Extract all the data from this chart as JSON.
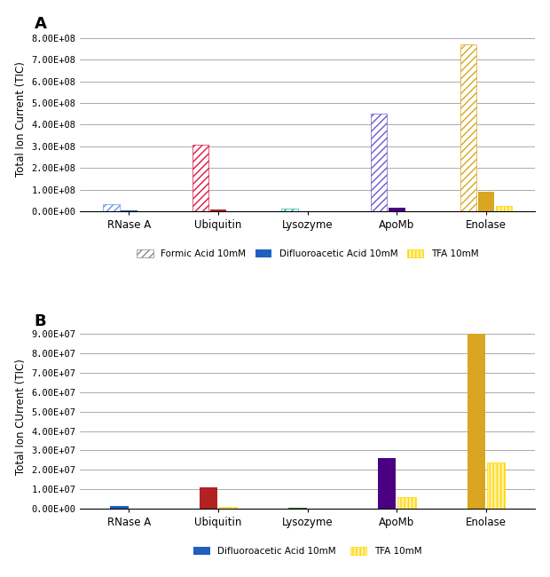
{
  "panel_A": {
    "title": "A",
    "ylabel": "Total Ion Current (TIC)",
    "categories": [
      "RNase A",
      "Ubiquitin",
      "Lysozyme",
      "ApoMb",
      "Enolase"
    ],
    "FA": [
      35000000.0,
      310000000.0,
      15000000.0,
      450000000.0,
      770000000.0
    ],
    "DFA": [
      4000000.0,
      8000000.0,
      3000000.0,
      20000000.0,
      90000000.0
    ],
    "TFA": [
      500000.0,
      1500000.0,
      500000.0,
      3000000.0,
      25000000.0
    ],
    "ylim": [
      0,
      850000000.0
    ],
    "yticks": [
      0,
      100000000.0,
      200000000.0,
      300000000.0,
      400000000.0,
      500000000.0,
      600000000.0,
      700000000.0,
      800000000.0
    ],
    "ytick_labels": [
      "0.00E+00",
      "1.00E+08",
      "2.00E+08",
      "3.00E+08",
      "4.00E+08",
      "5.00E+08",
      "6.00E+08",
      "7.00E+08",
      "8.00E+08"
    ]
  },
  "panel_B": {
    "title": "B",
    "ylabel": "Total Ion CUrrent (TIC)",
    "categories": [
      "RNase A",
      "Ubiquitin",
      "Lysozyme",
      "ApoMb",
      "Enolase"
    ],
    "DFA": [
      1500000.0,
      11000000.0,
      700000.0,
      26000000.0,
      90000000.0
    ],
    "TFA": [
      200000.0,
      1000000.0,
      200000.0,
      6000000.0,
      24000000.0
    ],
    "ylim": [
      0,
      95000000.0
    ],
    "yticks": [
      0,
      10000000.0,
      20000000.0,
      30000000.0,
      40000000.0,
      50000000.0,
      60000000.0,
      70000000.0,
      80000000.0,
      90000000.0
    ],
    "ytick_labels": [
      "0.00E+00",
      "1.00E+07",
      "2.00E+07",
      "3.00E+07",
      "4.00E+07",
      "5.00E+07",
      "6.00E+07",
      "7.00E+07",
      "8.00E+07",
      "9.00E+07"
    ]
  },
  "fa_hatch_colors": [
    "#6495ED",
    "#DC143C",
    "#20B2AA",
    "#6A5ACD",
    "#DAA520"
  ],
  "dfa_solid_colors": [
    "#1E5FBF",
    "#B22222",
    "#1A7A3C",
    "#4B0082",
    "#DAA520"
  ],
  "tfa_hatch_color": "#FFD700",
  "tfa_hatch_light": "#FFF0A0"
}
